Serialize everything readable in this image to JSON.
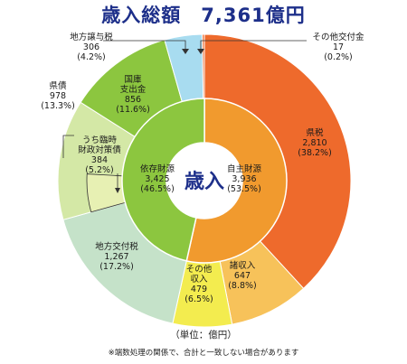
{
  "title": "歳入総額　7,361億円",
  "unit_label": "（単位：億円）",
  "footnote": "※端数処理の関係で、合計と一致しない場合があります",
  "colors": {
    "title": "#1d2f8a",
    "self_inner": "#f19a2e",
    "dependent_inner": "#8cc63f",
    "prefectural_tax": "#ee6a2c",
    "other_income": "#f7c25a",
    "other": "#f3ec4f",
    "local_allocation_tax": "#c5e2c9",
    "temporary_bond": "#e7f0b3",
    "prefectural_bond": "#d4e8a6",
    "national_treasury": "#8cc63f",
    "transfer_tax": "#a8dcf0",
    "other_grant": "#ee6a2c"
  },
  "chart_data": {
    "type": "pie",
    "title": "歳入総額　7,361億円",
    "center_label": "歳入",
    "unit": "億円",
    "inner_ring": [
      {
        "label": "自主財源",
        "value": 3936,
        "value_text": "3,936",
        "percent_text": "(53.5%)"
      },
      {
        "label": "依存財源",
        "value": 3425,
        "value_text": "3,425",
        "percent_text": "(46.5%)"
      }
    ],
    "outer_ring": [
      {
        "label": "県税",
        "value": 2810,
        "value_text": "2,810",
        "percent_text": "(38.2%)"
      },
      {
        "label": "諸収入",
        "value": 647,
        "value_text": "647",
        "percent_text": "(8.8%)"
      },
      {
        "label": "その他収入",
        "value": 479,
        "value_text": "479",
        "percent_text": "(6.5%)"
      },
      {
        "label": "地方交付税",
        "value": 1267,
        "value_text": "1,267",
        "percent_text": "(17.2%)"
      },
      {
        "label": "県債",
        "value": 978,
        "value_text": "978",
        "percent_text": "(13.3%)"
      },
      {
        "label": "国庫支出金",
        "value": 856,
        "value_text": "856",
        "percent_text": "(11.6%)"
      },
      {
        "label": "地方譲与税",
        "value": 306,
        "value_text": "306",
        "percent_text": "(4.2%)"
      },
      {
        "label": "その他交付金",
        "value": 17,
        "value_text": "17",
        "percent_text": "(0.2%)"
      }
    ],
    "sub_segment": {
      "label": "うち臨時財政対策債",
      "parent": "県債",
      "value": 384,
      "value_text": "384",
      "percent_text": "(5.2%)"
    }
  }
}
